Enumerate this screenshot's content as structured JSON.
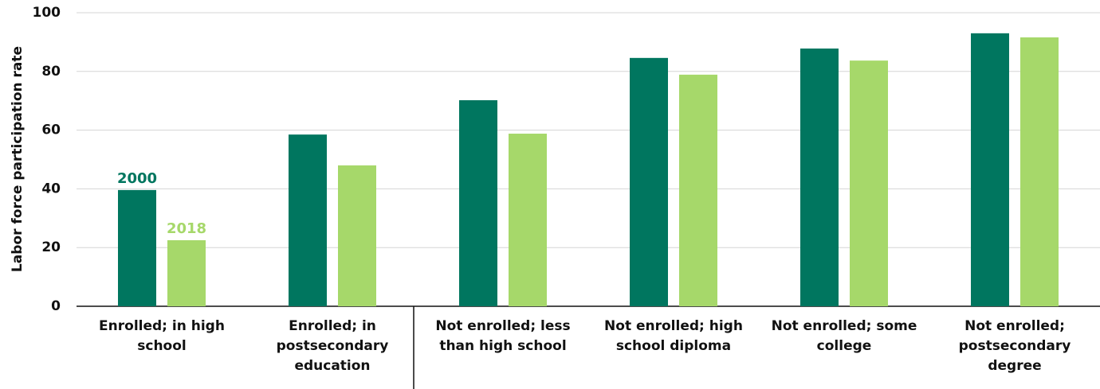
{
  "chart_data": {
    "type": "bar",
    "y_label": "Labor force participation rate",
    "categories": [
      "Enrolled; in high school",
      "Enrolled; in postsecondary education",
      "Not enrolled; less than high school",
      "Not enrolled; high school diploma",
      "Not enrolled; some college",
      "Not enrolled; postsecondary degree"
    ],
    "series": [
      {
        "name": "2000",
        "color": "#00765f",
        "values": [
          39.6,
          58.5,
          70.2,
          84.6,
          87.8,
          93.0
        ]
      },
      {
        "name": "2018",
        "color": "#a6d86a",
        "values": [
          22.5,
          48.0,
          58.8,
          78.9,
          83.7,
          91.6
        ]
      }
    ],
    "ylim": [
      0,
      100
    ],
    "yticks": [
      0,
      20,
      40,
      60,
      80,
      100
    ],
    "grid": true
  }
}
